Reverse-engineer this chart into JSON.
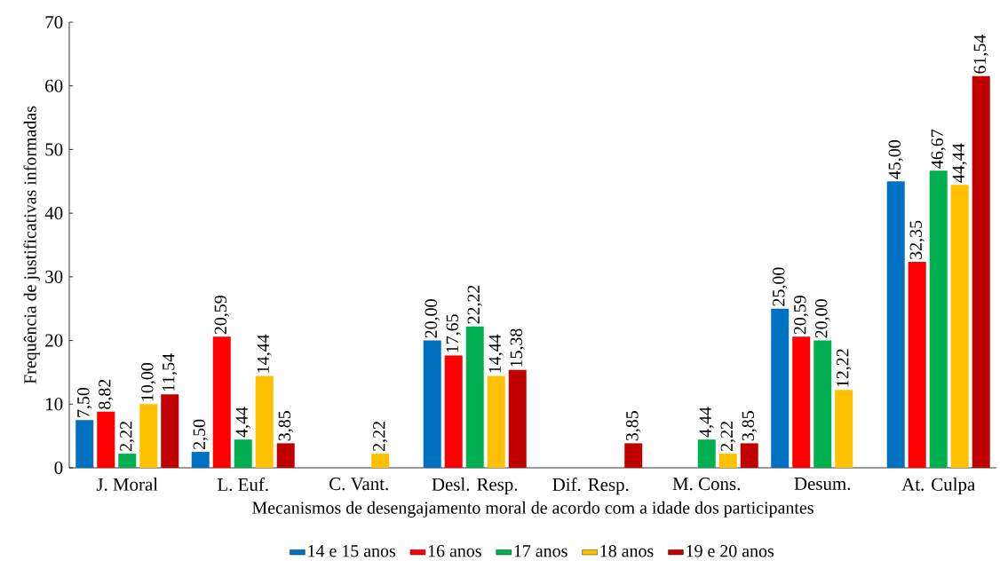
{
  "chart_data": {
    "type": "bar",
    "xlabel": "Mecanismos de desengajamento moral de acordo com a idade dos participantes",
    "ylabel": "Frequência de justificativas  informadas",
    "categories": [
      "J. Moral",
      "L. Euf.",
      "C. Vant.",
      "Desl. Resp.",
      "Dif. Resp.",
      "M. Cons.",
      "Desum.",
      "At. Culpa"
    ],
    "series": [
      {
        "name": "14 e 15 anos",
        "color": "#0070c0",
        "values": [
          7.5,
          2.5,
          null,
          20.0,
          null,
          null,
          25.0,
          45.0
        ],
        "value_labels": [
          "7,50",
          "2,50",
          null,
          "20,00",
          null,
          null,
          "25,00",
          "45,00"
        ]
      },
      {
        "name": "16 anos",
        "color": "#ff0000",
        "values": [
          8.82,
          20.59,
          null,
          17.65,
          null,
          null,
          20.59,
          32.35
        ],
        "value_labels": [
          "8,82",
          "20,59",
          null,
          "17,65",
          null,
          null,
          "20,59",
          "32,35"
        ]
      },
      {
        "name": "17 anos",
        "color": "#00b050",
        "values": [
          2.22,
          4.44,
          null,
          22.22,
          null,
          4.44,
          20.0,
          46.67
        ],
        "value_labels": [
          "2,22",
          "4,44",
          null,
          "22,22",
          null,
          "4,44",
          "20,00",
          "46,67"
        ]
      },
      {
        "name": "18 anos",
        "color": "#ffc000",
        "values": [
          10.0,
          14.44,
          2.22,
          14.44,
          null,
          2.22,
          12.22,
          44.44
        ],
        "value_labels": [
          "10,00",
          "14,44",
          "2,22",
          "14,44",
          null,
          "2,22",
          "12,22",
          "44,44"
        ]
      },
      {
        "name": "19 e 20 anos",
        "color": "#c00000",
        "values": [
          11.54,
          3.85,
          null,
          15.38,
          3.85,
          3.85,
          null,
          61.54
        ],
        "value_labels": [
          "11,54",
          "3,85",
          null,
          "15,38",
          "3,85",
          "3,85",
          null,
          "61,54"
        ]
      }
    ],
    "ylim": [
      0,
      70
    ],
    "yticks": [
      0,
      10,
      20,
      30,
      40,
      50,
      60,
      70
    ],
    "legend": "bottom"
  }
}
